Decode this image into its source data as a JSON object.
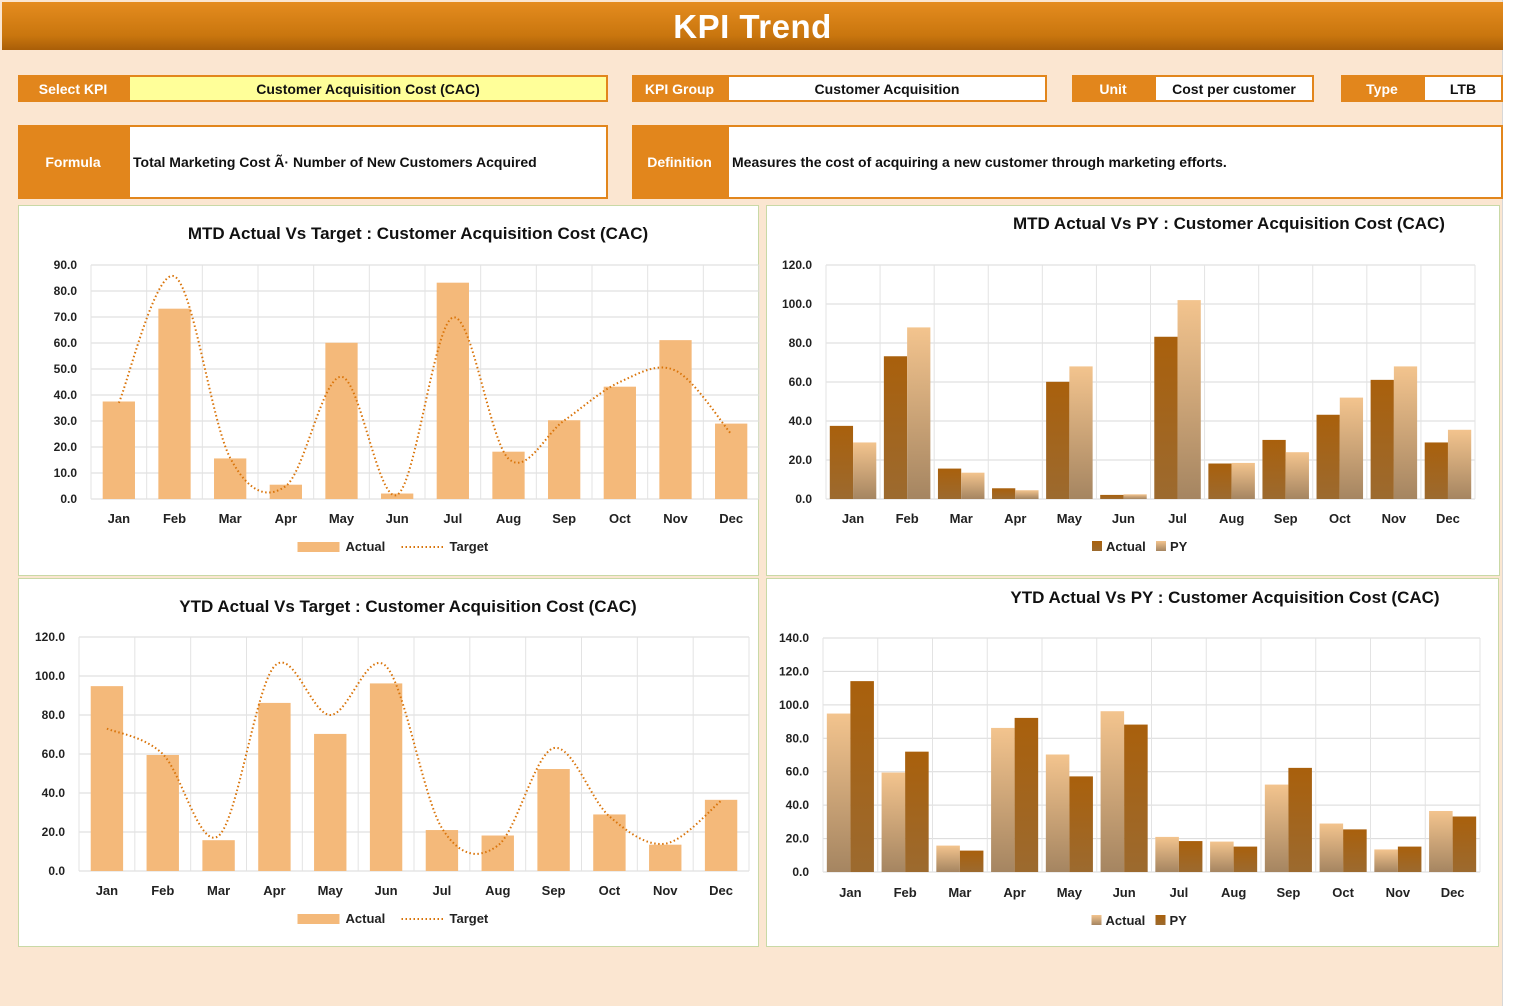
{
  "header": {
    "title": "KPI Trend"
  },
  "selectors": {
    "select_kpi_label": "Select KPI",
    "select_kpi_value": "Customer Acquisition Cost (CAC)",
    "kpi_group_label": "KPI Group",
    "kpi_group_value": "Customer Acquisition",
    "unit_label": "Unit",
    "unit_value": "Cost per customer",
    "type_label": "Type",
    "type_value": "LTB",
    "formula_label": "Formula",
    "formula_value": "Total Marketing Cost Ã· Number of New Customers Acquired",
    "definition_label": "Definition",
    "definition_value": "Measures the cost of acquiring a new customer through marketing efforts."
  },
  "colors": {
    "accent": "#e2861c",
    "actual_bar": "#f4b97a",
    "target_line": "#d9740a",
    "dark_bar": "#a6600f",
    "light_bar": "#e8c090"
  },
  "chart_data": [
    {
      "id": "mtd_target",
      "type": "bar",
      "title": "MTD Actual Vs Target : Customer Acquisition Cost (CAC)",
      "categories": [
        "Jan",
        "Feb",
        "Mar",
        "Apr",
        "May",
        "Jun",
        "Jul",
        "Aug",
        "Sep",
        "Oct",
        "Nov",
        "Dec"
      ],
      "series": [
        {
          "name": "Actual",
          "kind": "bar",
          "values": [
            37.5,
            73.2,
            15.6,
            5.5,
            60.1,
            2.1,
            83.2,
            18.2,
            30.3,
            43.2,
            61.1,
            29.0
          ]
        },
        {
          "name": "Target",
          "kind": "smooth-dotted-line",
          "values": [
            37.0,
            85.6,
            15.8,
            5.0,
            47.0,
            1.6,
            69.8,
            15.5,
            30.2,
            45.0,
            49.4,
            25.0
          ]
        }
      ],
      "ylim": [
        0,
        90
      ],
      "ystep": 10,
      "grid": true,
      "legend": "bottom"
    },
    {
      "id": "mtd_py",
      "type": "bar",
      "title": "MTD Actual Vs PY : Customer Acquisition Cost (CAC)",
      "categories": [
        "Jan",
        "Feb",
        "Mar",
        "Apr",
        "May",
        "Jun",
        "Jul",
        "Aug",
        "Sep",
        "Oct",
        "Nov",
        "Dec"
      ],
      "series": [
        {
          "name": "Actual",
          "kind": "bar",
          "values": [
            37.5,
            73.2,
            15.6,
            5.5,
            60.1,
            2.1,
            83.2,
            18.2,
            30.3,
            43.2,
            61.1,
            29.0
          ]
        },
        {
          "name": "PY",
          "kind": "bar",
          "values": [
            29.0,
            88.0,
            13.5,
            4.5,
            68.0,
            2.4,
            102.0,
            18.5,
            24.0,
            52.0,
            68.0,
            35.5
          ]
        }
      ],
      "ylim": [
        0,
        120
      ],
      "ystep": 20,
      "grid": true,
      "legend": "bottom"
    },
    {
      "id": "ytd_target",
      "type": "bar",
      "title": "YTD Actual Vs Target : Customer Acquisition Cost (CAC)",
      "categories": [
        "Jan",
        "Feb",
        "Mar",
        "Apr",
        "May",
        "Jun",
        "Jul",
        "Aug",
        "Sep",
        "Oct",
        "Nov",
        "Dec"
      ],
      "series": [
        {
          "name": "Actual",
          "kind": "bar",
          "values": [
            94.8,
            59.5,
            15.8,
            86.2,
            70.3,
            96.2,
            21.0,
            18.2,
            52.3,
            29.0,
            13.5,
            36.5
          ]
        },
        {
          "name": "Target",
          "kind": "smooth-dotted-line",
          "values": [
            73.0,
            60.0,
            18.0,
            105.0,
            80.0,
            105.0,
            22.0,
            13.0,
            63.0,
            28.0,
            14.0,
            36.0
          ]
        }
      ],
      "ylim": [
        0,
        120
      ],
      "ystep": 20,
      "grid": true,
      "legend": "bottom"
    },
    {
      "id": "ytd_py",
      "type": "bar",
      "title": "YTD Actual Vs PY : Customer Acquisition Cost (CAC)",
      "categories": [
        "Jan",
        "Feb",
        "Mar",
        "Apr",
        "May",
        "Jun",
        "Jul",
        "Aug",
        "Sep",
        "Oct",
        "Nov",
        "Dec"
      ],
      "series": [
        {
          "name": "Actual",
          "kind": "bar",
          "values": [
            94.8,
            59.5,
            15.8,
            86.2,
            70.3,
            96.2,
            21.0,
            18.2,
            52.3,
            29.0,
            13.5,
            36.5
          ]
        },
        {
          "name": "PY",
          "kind": "bar",
          "values": [
            114.2,
            72.0,
            12.8,
            92.2,
            57.2,
            88.2,
            18.5,
            15.2,
            62.3,
            25.5,
            15.2,
            33.2
          ]
        }
      ],
      "ylim": [
        0,
        140
      ],
      "ystep": 20,
      "grid": true,
      "legend": "bottom"
    }
  ]
}
